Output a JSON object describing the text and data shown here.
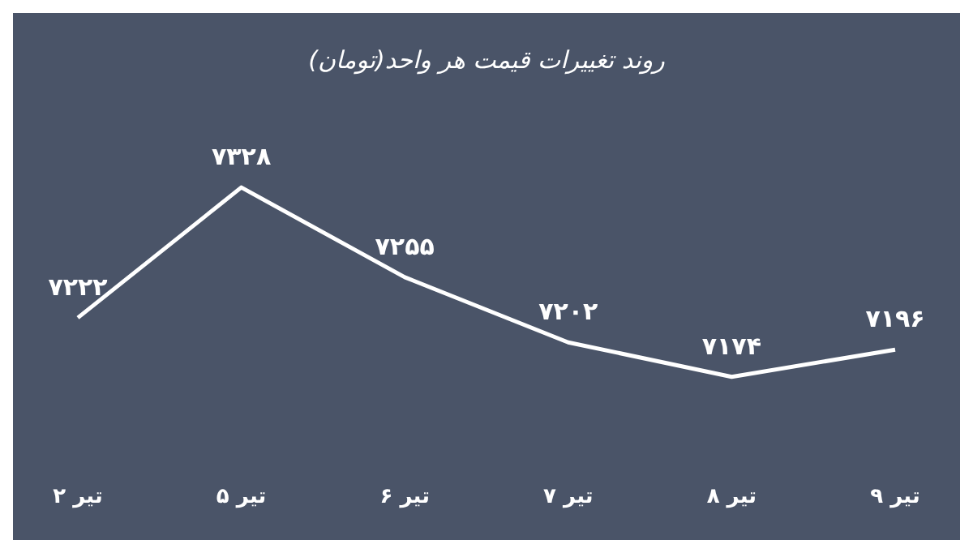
{
  "chart_data": {
    "type": "line",
    "title": "روند تغییرات قیمت هر واحد(تومان)",
    "categories": [
      "۲ تیر",
      "۵ تیر",
      "۶ تیر",
      "۷ تیر",
      "۸ تیر",
      "۹ تیر"
    ],
    "values": [
      7222,
      7328,
      7255,
      7202,
      7174,
      7196
    ],
    "value_labels": [
      "۷۲۲۲",
      "۷۳۲۸",
      "۷۲۵۵",
      "۷۲۰۲",
      "۷۱۷۴",
      "۷۱۹۶"
    ],
    "color": "#ffffff",
    "marker": "none"
  }
}
